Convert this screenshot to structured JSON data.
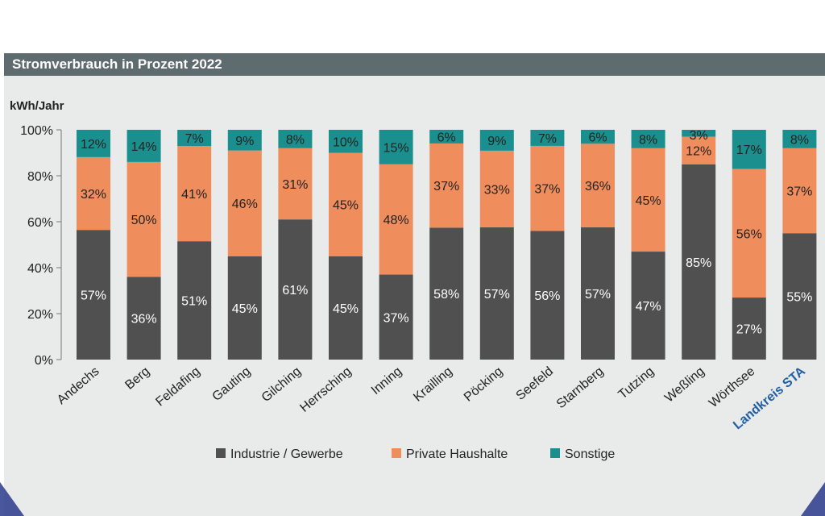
{
  "title": "Stromverbrauch in Prozent 2022",
  "colors": {
    "industry": "#505050",
    "private": "#f08d5c",
    "other": "#1b8f8d",
    "highlight_label": "#1f5fa5",
    "title_bar": "#5e6b6f"
  },
  "chart_data": {
    "type": "bar",
    "stacked": true,
    "ylabel": "kWh/Jahr",
    "ylim": [
      0,
      100
    ],
    "yticks": [
      "0%",
      "20%",
      "40%",
      "60%",
      "80%",
      "100%"
    ],
    "categories": [
      "Andechs",
      "Berg",
      "Feldafing",
      "Gauting",
      "Gilching",
      "Herrsching",
      "Inning",
      "Krailling",
      "Pöcking",
      "Seefeld",
      "Starnberg",
      "Tutzing",
      "Weßling",
      "Wörthsee",
      "Landkreis STA"
    ],
    "highlight_category": "Landkreis STA",
    "series": [
      {
        "name": "Industrie / Gewerbe",
        "color": "#505050",
        "label_color": "#ffffff",
        "values": [
          57,
          36,
          51,
          45,
          61,
          45,
          37,
          58,
          57,
          56,
          57,
          47,
          85,
          27,
          55
        ],
        "labels": [
          "57%",
          "36%",
          "51%",
          "45%",
          "61%",
          "45%",
          "37%",
          "58%",
          "57%",
          "56%",
          "57%",
          "47%",
          "85%",
          "27%",
          "55%"
        ]
      },
      {
        "name": "Private Haushalte",
        "color": "#f08d5c",
        "label_color": "#222222",
        "values": [
          32,
          50,
          41,
          46,
          31,
          45,
          48,
          37,
          33,
          37,
          36,
          45,
          12,
          56,
          37
        ],
        "labels": [
          "32%",
          "50%",
          "41%",
          "46%",
          "31%",
          "45%",
          "48%",
          "37%",
          "33%",
          "37%",
          "36%",
          "45%",
          "12%",
          "56%",
          "37%"
        ]
      },
      {
        "name": "Sonstige",
        "color": "#1b8f8d",
        "label_color": "#222222",
        "values": [
          12,
          14,
          7,
          9,
          8,
          10,
          15,
          6,
          9,
          7,
          6,
          8,
          3,
          17,
          8
        ],
        "labels": [
          "12%",
          "14%",
          "7%",
          "9%",
          "8%",
          "10%",
          "15%",
          "6%",
          "9%",
          "7%",
          "6%",
          "8%",
          "3%",
          "17%",
          "8%"
        ]
      }
    ],
    "legend_position": "bottom",
    "grid": false
  }
}
